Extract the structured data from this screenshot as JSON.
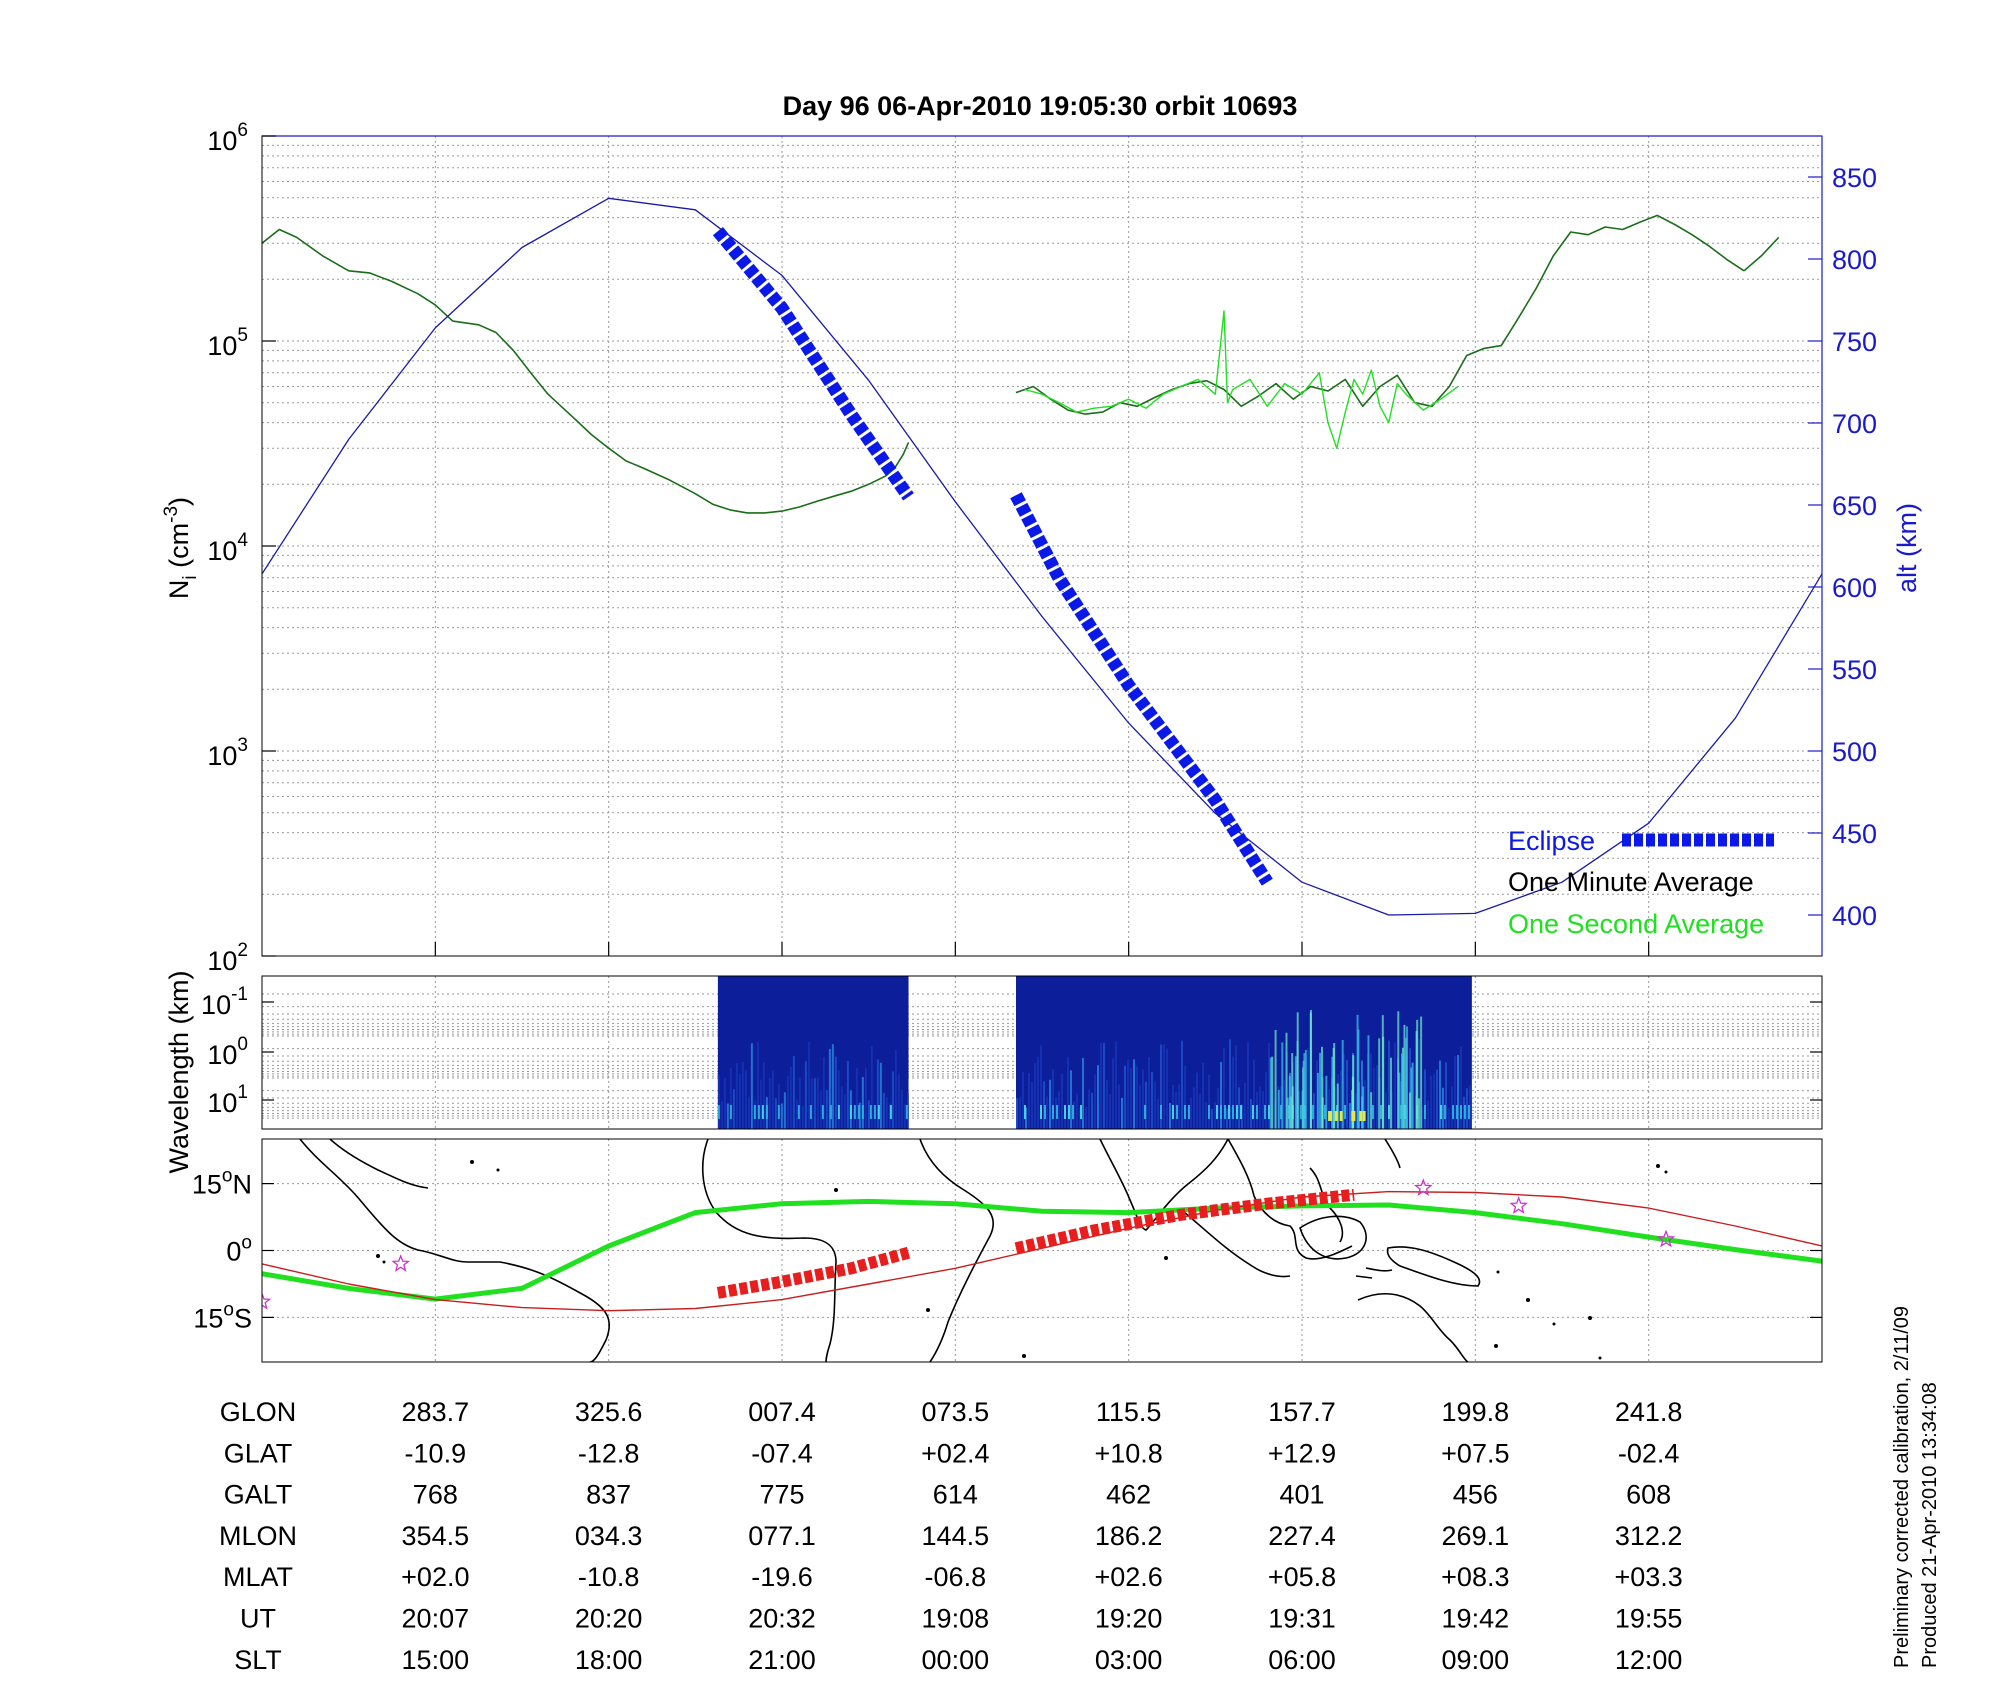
{
  "title": "Day 96  06-Apr-2010 19:05:30   orbit 10693",
  "colors": {
    "one_minute": "#1a6e1a",
    "one_second": "#20e020",
    "eclipse": "#0a18e8",
    "altitude": "#1a1aa8",
    "track": "#20e020",
    "magnetic_equator": "#c81e1e",
    "eclipse_track": "#e81e1e",
    "star": "#cc33cc"
  },
  "chart_data": [
    {
      "type": "line",
      "name": "density-panel",
      "ylabel_left": "N",
      "ylabel_left_sub": "i",
      "ylabel_left_unit": " (cm",
      "ylabel_left_sup": "-3",
      "ylabel_left_close": ")",
      "ylabel_right": "alt (km)",
      "x_ticks_ut": [
        "20:07",
        "20:20",
        "20:32",
        "19:08",
        "19:20",
        "19:31",
        "19:42",
        "19:55"
      ],
      "y_left_scale": "log",
      "y_left_range": [
        100,
        1000000
      ],
      "y_left_ticks": [
        {
          "base": "10",
          "exp": "2",
          "value": 100
        },
        {
          "base": "10",
          "exp": "3",
          "value": 1000
        },
        {
          "base": "10",
          "exp": "4",
          "value": 10000
        },
        {
          "base": "10",
          "exp": "5",
          "value": 100000
        },
        {
          "base": "10",
          "exp": "6",
          "value": 1000000
        }
      ],
      "y_right_range": [
        375,
        875
      ],
      "y_right_ticks": [
        "400",
        "450",
        "500",
        "550",
        "600",
        "650",
        "700",
        "750",
        "800",
        "850"
      ],
      "grid": true,
      "legend": {
        "placement": "bottom-right",
        "entries": [
          {
            "label": "Eclipse",
            "color": "#0a18e8"
          },
          {
            "label": "One Minute Average",
            "color": "#000000"
          },
          {
            "label": "One Second Average",
            "color": "#20e020"
          }
        ]
      },
      "series": [
        {
          "name": "One Minute Average",
          "axis": "left",
          "segments": [
            {
              "x": [
                0.0,
                0.1,
                0.2,
                0.35,
                0.5,
                0.62,
                0.75,
                0.9,
                1.0,
                1.1,
                1.25,
                1.35,
                1.45,
                1.55,
                1.65,
                1.8,
                1.9,
                2.0,
                2.1,
                2.2,
                2.35,
                2.5,
                2.6,
                2.7,
                2.8,
                2.9,
                3.0,
                3.1,
                3.2,
                3.3,
                3.4,
                3.5,
                3.6,
                3.65,
                3.7,
                3.73
              ],
              "y": [
                300000,
                350000,
                320000,
                260000,
                220000,
                215000,
                195000,
                170000,
                150000,
                125000,
                120000,
                110000,
                90000,
                70000,
                55000,
                42000,
                35000,
                30000,
                26000,
                24000,
                21000,
                18000,
                16000,
                15000,
                14500,
                14500,
                14800,
                15500,
                16500,
                17500,
                18500,
                20000,
                22000,
                24000,
                28000,
                32000
              ]
            },
            {
              "x": [
                4.35,
                4.45,
                4.55,
                4.65,
                4.75,
                4.85,
                4.95,
                5.05,
                5.15,
                5.25,
                5.35,
                5.45,
                5.55,
                5.65,
                5.75,
                5.85,
                5.95,
                6.05,
                6.15,
                6.25,
                6.35,
                6.45,
                6.55,
                6.65,
                6.75,
                6.85,
                6.95,
                7.05,
                7.15,
                7.25,
                7.35,
                7.45,
                7.55,
                7.65,
                7.75,
                7.85,
                7.95,
                8.05,
                8.15,
                8.25,
                8.35,
                8.45,
                8.55
              ],
              "y": [
                56000,
                60000,
                52000,
                46000,
                44000,
                45000,
                50000,
                48000,
                53000,
                58000,
                62000,
                64000,
                58000,
                48000,
                54000,
                62000,
                52000,
                60000,
                57000,
                65000,
                48000,
                60000,
                68000,
                50000,
                48000,
                60000,
                85000,
                92000,
                95000,
                130000,
                180000,
                260000,
                340000,
                330000,
                360000,
                350000,
                380000,
                410000,
                370000,
                330000,
                290000,
                250000,
                220000
              ]
            },
            {
              "x": [
                8.55,
                8.65,
                8.75
              ],
              "y": [
                220000,
                260000,
                320000
              ]
            }
          ]
        },
        {
          "name": "One Second Average",
          "axis": "left",
          "segments": [
            {
              "x": [
                4.4,
                4.5,
                4.6,
                4.7,
                4.8,
                4.9,
                5.0,
                5.1,
                5.2,
                5.3,
                5.4,
                5.5,
                5.55,
                5.57,
                5.6,
                5.7,
                5.8,
                5.9,
                6.0,
                6.1,
                6.15,
                6.2,
                6.25,
                6.3,
                6.35,
                6.4,
                6.45,
                6.5,
                6.55,
                6.6,
                6.7,
                6.8,
                6.9
              ],
              "y": [
                58000,
                55000,
                50000,
                45000,
                47000,
                48000,
                52000,
                47000,
                55000,
                60000,
                65000,
                55000,
                140000,
                50000,
                58000,
                65000,
                48000,
                62000,
                55000,
                70000,
                40000,
                30000,
                45000,
                65000,
                55000,
                72000,
                48000,
                40000,
                62000,
                55000,
                46000,
                52000,
                60000
              ]
            }
          ]
        },
        {
          "name": "Altitude",
          "axis": "right",
          "segments": [
            {
              "x": [
                0.0,
                0.5,
                1.0,
                1.5,
                2.0,
                2.5,
                3.0,
                3.5,
                4.0,
                4.5,
                5.0,
                5.5,
                6.0,
                6.5,
                7.0,
                7.5,
                8.0,
                8.5,
                9.0
              ],
              "y": [
                608,
                690,
                758,
                807,
                837,
                830,
                790,
                726,
                652,
                582,
                517,
                462,
                420,
                400,
                401,
                420,
                456,
                520,
                608
              ]
            }
          ]
        },
        {
          "name": "Eclipse",
          "axis": "right",
          "segments": [
            {
              "x": [
                2.63,
                3.0,
                3.4,
                3.73
              ],
              "y": [
                817,
                770,
                705,
                655
              ]
            },
            {
              "x": [
                4.35,
                4.6,
                5.0,
                5.5,
                5.8
              ],
              "y": [
                656,
                605,
                540,
                470,
                420
              ]
            }
          ]
        }
      ]
    },
    {
      "type": "heatmap",
      "name": "wavelength-panel",
      "ylabel": "Wavelength (km)",
      "y_ticks": [
        {
          "base": "10",
          "exp": "-1"
        },
        {
          "base": "10",
          "exp": "0"
        },
        {
          "base": "10",
          "exp": "1"
        }
      ],
      "blocks": [
        {
          "x_start": 2.63,
          "x_end": 3.73
        },
        {
          "x_start": 4.35,
          "x_end": 6.98
        }
      ]
    },
    {
      "type": "line",
      "name": "map-panel",
      "y_ticks": [
        {
          "value": "15",
          "sup": "o",
          "suffix": "N"
        },
        {
          "value": "0",
          "sup": "o",
          "suffix": ""
        },
        {
          "value": "15",
          "sup": "o",
          "suffix": "S"
        }
      ],
      "y_range": [
        -25,
        25
      ],
      "series": [
        {
          "name": "track",
          "x": [
            0.0,
            0.5,
            1.0,
            1.5,
            2.0,
            2.5,
            3.0,
            3.5,
            4.0,
            4.5,
            5.0,
            5.5,
            6.0,
            6.5,
            7.0,
            7.5,
            8.0,
            8.5,
            9.0
          ],
          "y": [
            -5.2,
            -8.5,
            -10.9,
            -8.5,
            1.0,
            8.5,
            10.5,
            11.0,
            10.5,
            8.8,
            8.5,
            9.5,
            10.0,
            10.2,
            8.5,
            6.0,
            3.0,
            0.2,
            -2.4
          ]
        },
        {
          "name": "magnetic-equator",
          "x": [
            0.0,
            0.5,
            1.0,
            1.5,
            2.0,
            2.5,
            3.0,
            3.5,
            4.0,
            4.5,
            5.0,
            5.5,
            6.0,
            6.5,
            7.0,
            7.5,
            8.0,
            8.5,
            9.0
          ],
          "y": [
            -3.0,
            -7.5,
            -11.0,
            -12.8,
            -13.5,
            -13.0,
            -11.0,
            -7.5,
            -4.0,
            0.5,
            5.0,
            9.0,
            12.0,
            13.2,
            13.0,
            12.0,
            9.5,
            5.5,
            1.0
          ]
        },
        {
          "name": "eclipse-track-1",
          "x": [
            2.63,
            3.0,
            3.4,
            3.73
          ],
          "y": [
            -9.5,
            -7.0,
            -4.0,
            -0.5
          ]
        },
        {
          "name": "eclipse-track-2",
          "x": [
            4.35,
            4.8,
            5.3,
            5.8,
            6.3
          ],
          "y": [
            0.5,
            4.5,
            8.0,
            10.5,
            12.5
          ]
        }
      ],
      "stars": [
        {
          "x": 0.0,
          "y": -11.5
        },
        {
          "x": 0.8,
          "y": -3.0
        },
        {
          "x": 6.7,
          "y": 14.0
        },
        {
          "x": 7.25,
          "y": 10.0
        },
        {
          "x": 8.1,
          "y": 2.5
        }
      ]
    }
  ],
  "orbit_table": {
    "row_labels": [
      "GLON",
      "GLAT",
      "GALT",
      "MLON",
      "MLAT",
      "UT",
      "SLT"
    ],
    "columns": [
      [
        "283.7",
        "-10.9",
        "768",
        "354.5",
        "+02.0",
        "20:07",
        "15:00"
      ],
      [
        "325.6",
        "-12.8",
        "837",
        "034.3",
        "-10.8",
        "20:20",
        "18:00"
      ],
      [
        "007.4",
        "-07.4",
        "775",
        "077.1",
        "-19.6",
        "20:32",
        "21:00"
      ],
      [
        "073.5",
        "+02.4",
        "614",
        "144.5",
        "-06.8",
        "19:08",
        "00:00"
      ],
      [
        "115.5",
        "+10.8",
        "462",
        "186.2",
        "+02.6",
        "19:20",
        "03:00"
      ],
      [
        "157.7",
        "+12.9",
        "401",
        "227.4",
        "+05.8",
        "19:31",
        "06:00"
      ],
      [
        "199.8",
        "+07.5",
        "456",
        "269.1",
        "+08.3",
        "19:42",
        "09:00"
      ],
      [
        "241.8",
        "-02.4",
        "608",
        "312.2",
        "+03.3",
        "19:55",
        "12:00"
      ]
    ]
  },
  "footnotes": {
    "calibration": "Preliminary corrected calibration, 2/11/09",
    "produced": "Produced 21-Apr-2010 13:34:08"
  }
}
